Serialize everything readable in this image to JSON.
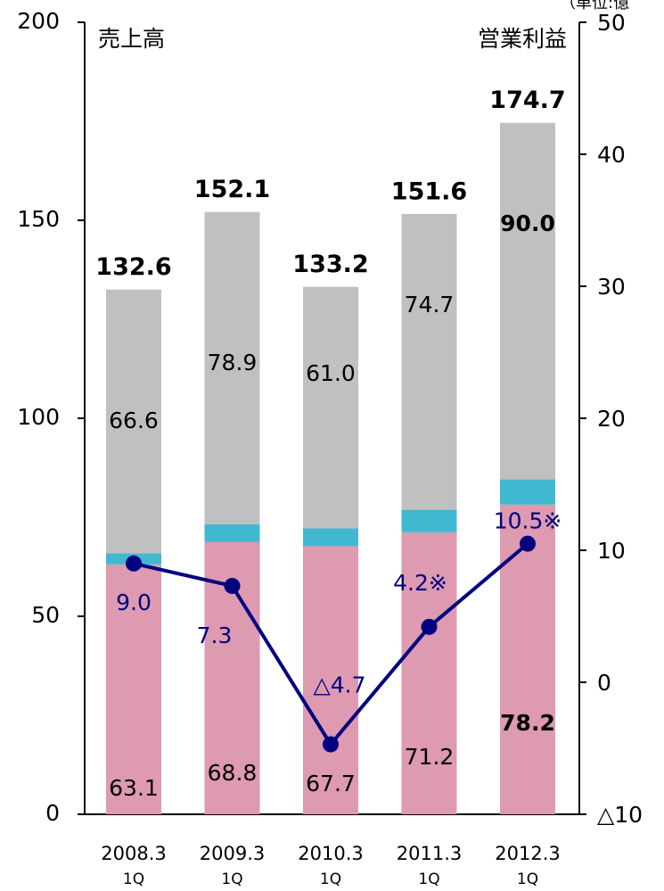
{
  "chart_data": {
    "type": "bar",
    "stacked": true,
    "unit_note": "（単位:億",
    "ylabel": "売上高",
    "y2label": "営業利益",
    "categories": [
      "2008.3",
      "2009.3",
      "2010.3",
      "2011.3",
      "2012.3"
    ],
    "period_labels": [
      "1Q",
      "1Q",
      "1Q",
      "1Q",
      "1Q"
    ],
    "series": [
      {
        "color": "#dd9ab0",
        "values": [
          63.1,
          68.8,
          67.7,
          71.2,
          78.2
        ]
      },
      {
        "color": "#40b8d0",
        "values": [
          2.8,
          4.4,
          4.5,
          5.7,
          6.4
        ]
      },
      {
        "color": "#c0c0c0",
        "values": [
          66.6,
          78.9,
          61.0,
          74.7,
          90.0
        ],
        "value_labels": [
          "66.6",
          "78.9",
          "61.0",
          "74.7",
          "90.0"
        ]
      },
      {
        "type": "line",
        "axis": "y2",
        "color": "#000080",
        "values": [
          9.0,
          7.3,
          -4.7,
          4.2,
          10.5
        ],
        "value_labels": [
          "9.0",
          "7.3",
          "△4.7",
          "4.2※",
          "10.5※"
        ]
      }
    ],
    "totals": [
      132.6,
      152.1,
      133.2,
      151.6,
      174.7
    ],
    "ylim": [
      0,
      200
    ],
    "yticks": [
      0,
      50,
      100,
      150,
      200
    ],
    "y2lim": [
      -10,
      50
    ],
    "y2ticks": [
      {
        "value": -10,
        "label": "△10"
      },
      0,
      10,
      20,
      30,
      40,
      50
    ]
  }
}
